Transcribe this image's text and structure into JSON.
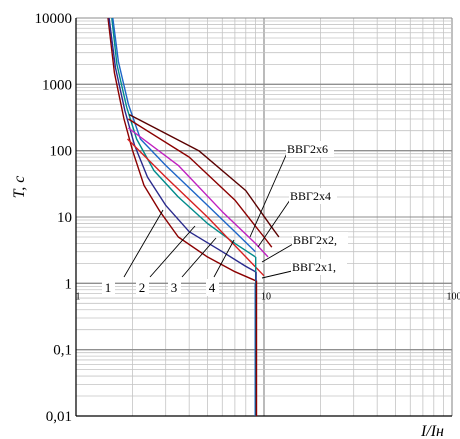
{
  "chart_data": {
    "type": "line",
    "title": "",
    "xlabel": "I/Iн",
    "ylabel": "T, c",
    "x_scale": "log",
    "y_scale": "log",
    "xlim": [
      1,
      100
    ],
    "ylim": [
      0.01,
      10000
    ],
    "grid": true,
    "x_tick_labels": [
      "1",
      "10",
      "100"
    ],
    "y_tick_labels": [
      "0,01",
      "0,1",
      "1",
      "10",
      "100",
      "1000",
      "10000"
    ],
    "curve_numbers": [
      "1",
      "2",
      "3",
      "4"
    ],
    "cable_labels": [
      "ВВГ2х6",
      "ВВГ2х4",
      "ВВГ2х2,",
      "ВВГ2х1,"
    ],
    "series": [
      {
        "color": "#8b0000",
        "points": [
          [
            1.48,
            10000
          ],
          [
            1.6,
            1500
          ],
          [
            1.8,
            300
          ],
          [
            2.0,
            100
          ],
          [
            2.3,
            30
          ],
          [
            2.8,
            12
          ],
          [
            3.5,
            5
          ],
          [
            5.0,
            2.5
          ],
          [
            7.0,
            1.5
          ],
          [
            9.0,
            1.1
          ]
        ]
      },
      {
        "color": "#2a2a8c",
        "points": [
          [
            1.5,
            10000
          ],
          [
            1.62,
            1800
          ],
          [
            1.82,
            400
          ],
          [
            2.05,
            120
          ],
          [
            2.4,
            40
          ],
          [
            3.0,
            15
          ],
          [
            4.0,
            6
          ],
          [
            6.0,
            3
          ],
          [
            8.0,
            1.8
          ],
          [
            9.0,
            1.5
          ]
        ]
      },
      {
        "color": "#008b8b",
        "points": [
          [
            1.55,
            10000
          ],
          [
            1.65,
            2000
          ],
          [
            1.86,
            450
          ],
          [
            2.1,
            150
          ],
          [
            2.6,
            50
          ],
          [
            3.5,
            20
          ],
          [
            5.0,
            8
          ],
          [
            7.0,
            4
          ],
          [
            9.0,
            2.5
          ]
        ]
      },
      {
        "color": "#1e66c8",
        "points": [
          [
            1.57,
            10000
          ],
          [
            1.68,
            2200
          ],
          [
            1.9,
            500
          ],
          [
            2.2,
            150
          ],
          [
            3.0,
            60
          ],
          [
            4.5,
            20
          ],
          [
            7.0,
            6
          ],
          [
            9.0,
            3
          ]
        ]
      },
      {
        "color": "#d62020",
        "points": [
          [
            1.88,
            150
          ],
          [
            3.0,
            40
          ],
          [
            5.0,
            10
          ],
          [
            8.0,
            2.5
          ],
          [
            10.0,
            1.3
          ]
        ]
      },
      {
        "color": "#c020c0",
        "points": [
          [
            1.9,
            220
          ],
          [
            3.5,
            60
          ],
          [
            6.0,
            12
          ],
          [
            9.0,
            4
          ],
          [
            10.5,
            2.5
          ]
        ]
      },
      {
        "color": "#8b0000",
        "points": [
          [
            1.9,
            300
          ],
          [
            4.0,
            80
          ],
          [
            7.0,
            18
          ],
          [
            10.0,
            5
          ],
          [
            11.0,
            3.5
          ]
        ]
      },
      {
        "color": "#5a0000",
        "points": [
          [
            1.92,
            350
          ],
          [
            4.5,
            100
          ],
          [
            8.0,
            25
          ],
          [
            11.0,
            7
          ],
          [
            12.0,
            5
          ]
        ]
      },
      {
        "color": "#1e66c8",
        "points": [
          [
            8.98,
            1.0
          ],
          [
            8.98,
            0.01
          ]
        ]
      },
      {
        "color": "#008b8b",
        "points": [
          [
            9.03,
            2.5
          ],
          [
            9.03,
            0.01
          ]
        ]
      },
      {
        "color": "#2a2a8c",
        "points": [
          [
            9.08,
            1.5
          ],
          [
            9.08,
            0.01
          ]
        ]
      },
      {
        "color": "#8b0000",
        "points": [
          [
            9.12,
            1.1
          ],
          [
            9.12,
            0.01
          ]
        ]
      }
    ]
  }
}
